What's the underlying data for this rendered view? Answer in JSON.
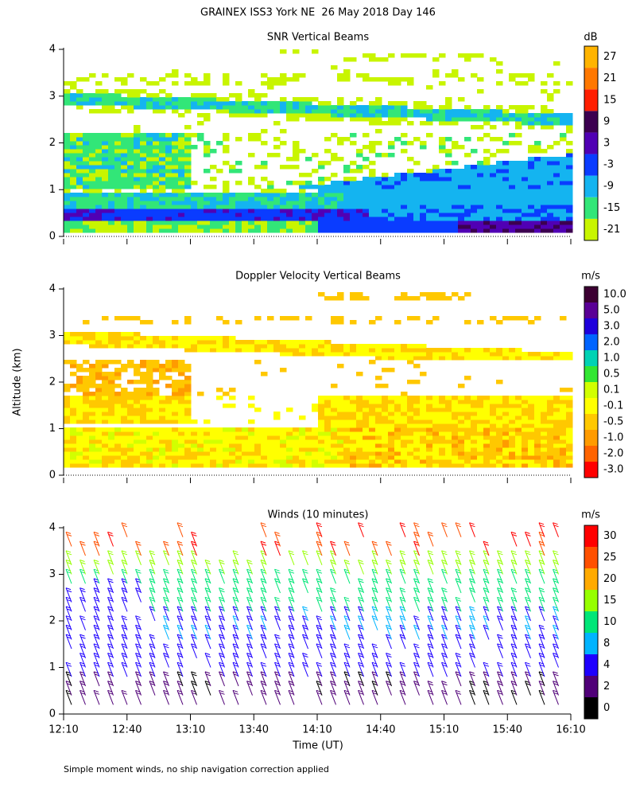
{
  "title": "GRAINEX ISS3 York NE  26 May 2018 Day 146",
  "y_label": "Altitude (km)",
  "x_label": "Time (UT)",
  "footnote": "Simple moment winds, no ship navigation correction applied",
  "chart_data": [
    {
      "type": "heatmap",
      "title": "SNR Vertical Beams",
      "ylim": [
        0,
        4
      ],
      "yticks": [
        0,
        1,
        2,
        3,
        4
      ],
      "colorbar": {
        "label": "dB",
        "ticks": [
          -21,
          -15,
          -9,
          -3,
          3,
          9,
          15,
          21,
          27
        ],
        "colors": [
          "#c8f500",
          "#32e678",
          "#14b4f0",
          "#0a3cff",
          "#5000b4",
          "#3c0050",
          "#ff1e00",
          "#ff7800",
          "#ffb400"
        ]
      }
    },
    {
      "type": "heatmap",
      "title": "Doppler Velocity Vertical Beams",
      "ylim": [
        0,
        4
      ],
      "yticks": [
        0,
        1,
        2,
        3,
        4
      ],
      "colorbar": {
        "label": "m/s",
        "ticks": [
          {
            "value": -3,
            "label": "-3.0"
          },
          {
            "value": -2,
            "label": "-2.0"
          },
          {
            "value": -1,
            "label": "-1.0"
          },
          -0.5,
          -0.1,
          0.1,
          0.5,
          {
            "value": 1,
            "label": "1.0"
          },
          {
            "value": 2,
            "label": "2.0"
          },
          {
            "value": 3,
            "label": "3.0"
          },
          {
            "value": 5,
            "label": "5.0"
          },
          {
            "value": 10,
            "label": "10.0"
          }
        ],
        "colors": [
          "#ff0000",
          "#ff6400",
          "#ff9b00",
          "#ffc800",
          "#ffff00",
          "#d2ff00",
          "#32e632",
          "#00d2b4",
          "#0064ff",
          "#1e00dc",
          "#5a0096",
          "#3c0032"
        ]
      }
    },
    {
      "type": "barbs",
      "title": "Winds (10 minutes)",
      "ylim": [
        0,
        4
      ],
      "yticks": [
        0,
        1,
        2,
        3,
        4
      ],
      "xticks": [
        "12:10",
        "12:40",
        "13:10",
        "13:40",
        "14:10",
        "14:40",
        "15:10",
        "15:40",
        "16:10"
      ],
      "colorbar": {
        "label": "m/s",
        "ticks": [
          0,
          2,
          4,
          8,
          10,
          15,
          20,
          25,
          30
        ],
        "colors": [
          "#000000",
          "#500078",
          "#1e00ff",
          "#00b4ff",
          "#00e678",
          "#96ff00",
          "#ffaa00",
          "#ff5000",
          "#ff0000"
        ]
      }
    }
  ]
}
